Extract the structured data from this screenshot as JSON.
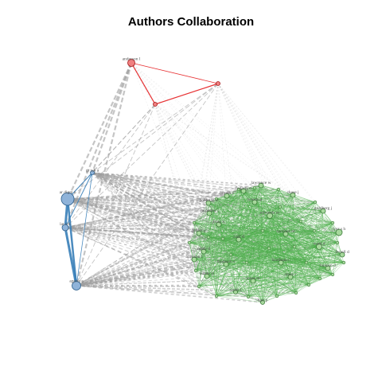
{
  "title": "Authors Collaboration",
  "colors": {
    "green": "#4daf4a",
    "green_fill": "#a6d89c",
    "blue": "#377eb8",
    "blue_fill": "#8fb3d9",
    "red": "#e41a1c",
    "red_fill": "#f08080",
    "grey_edge": "#9e9e9e",
    "label": "#555555"
  },
  "nodes": {
    "anderson_l": {
      "label": "anderson l",
      "cluster": "red"
    },
    "red_b": {
      "label": "",
      "cluster": "red"
    },
    "red_c": {
      "label": "",
      "cluster": "red"
    },
    "blue_a": {
      "label": "ar digm e",
      "cluster": "blue"
    },
    "blue_b": {
      "label": "gr tak a",
      "cluster": "blue"
    },
    "blue_c": {
      "label": "lat o k",
      "cluster": "blue"
    },
    "blue_d": {
      "label": "agerra e",
      "cluster": "blue"
    },
    "lawrence_w": {
      "label": "lawrence w",
      "cluster": "green"
    },
    "chase_j": {
      "label": "chase j",
      "cluster": "green"
    },
    "g2": {
      "label": "brown e",
      "cluster": "green"
    },
    "g3": {
      "label": "fogarty o",
      "cluster": "green"
    },
    "g4": {
      "label": "goldman d",
      "cluster": "green"
    },
    "g5": {
      "label": "edwards m",
      "cluster": "green"
    },
    "g6": {
      "label": "goldberg j",
      "cluster": "green"
    },
    "g7": {
      "label": "woods p",
      "cluster": "green"
    },
    "g8": {
      "label": "carpenter l",
      "cluster": "green"
    },
    "g9": {
      "label": "fong k",
      "cluster": "green"
    },
    "g10": {
      "label": "miller p",
      "cluster": "green"
    },
    "g11": {
      "label": "sanchez m",
      "cluster": "green"
    },
    "g12": {
      "label": "tyer s h",
      "cluster": "green"
    },
    "g13": {
      "label": "ward d",
      "cluster": "green"
    },
    "g14": {
      "label": "ready d",
      "cluster": "green"
    },
    "g15": {
      "label": "rieff d",
      "cluster": "green"
    },
    "g16": {
      "label": "ferrell d",
      "cluster": "green"
    },
    "g17": {
      "label": "harrison r",
      "cluster": "green"
    },
    "g18": {
      "label": "kaufman c",
      "cluster": "green"
    },
    "g19": {
      "label": "thomson s",
      "cluster": "green"
    },
    "g20": {
      "label": "hanson d",
      "cluster": "green"
    },
    "g21": {
      "label": "quade m",
      "cluster": "green"
    },
    "g22": {
      "label": "jones m",
      "cluster": "green"
    },
    "g23": {
      "label": "ames c",
      "cluster": "green"
    },
    "g24": {
      "label": "hart p",
      "cluster": "green"
    },
    "g25": {
      "label": "yates l",
      "cluster": "green"
    }
  }
}
